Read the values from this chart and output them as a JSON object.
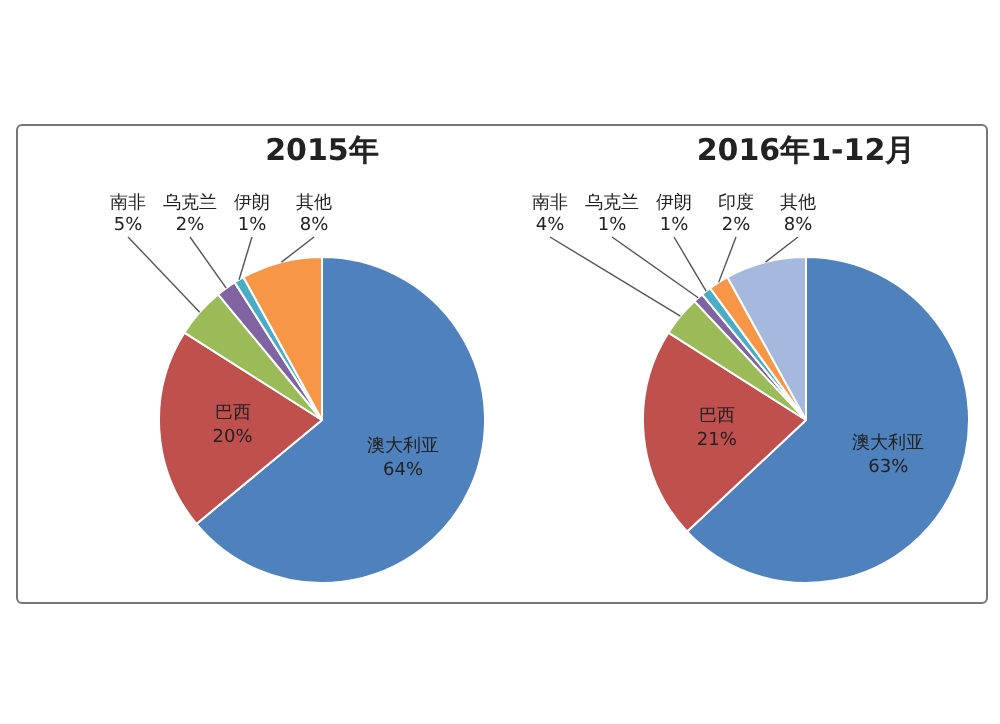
{
  "chart_data": [
    {
      "type": "pie",
      "title": "2015年",
      "categories": [
        "澳大利亚",
        "巴西",
        "南非",
        "乌克兰",
        "伊朗",
        "其他"
      ],
      "values": [
        64,
        20,
        5,
        2,
        1,
        8
      ],
      "value_labels": [
        "64%",
        "20%",
        "5%",
        "2%",
        "1%",
        "8%"
      ],
      "colors": [
        "#4f81bd",
        "#c0504d",
        "#9bbb59",
        "#8064a2",
        "#4bacc6",
        "#f79646"
      ],
      "legend": false
    },
    {
      "type": "pie",
      "title": "2016年1-12月",
      "categories": [
        "澳大利亚",
        "巴西",
        "南非",
        "乌克兰",
        "伊朗",
        "印度",
        "其他"
      ],
      "values": [
        63,
        21,
        4,
        1,
        1,
        2,
        8
      ],
      "value_labels": [
        "63%",
        "21%",
        "4%",
        "1%",
        "1%",
        "2%",
        "8%"
      ],
      "colors": [
        "#4f81bd",
        "#c0504d",
        "#9bbb59",
        "#8064a2",
        "#4bacc6",
        "#f79646",
        "#a5b9de"
      ],
      "legend": false
    }
  ]
}
